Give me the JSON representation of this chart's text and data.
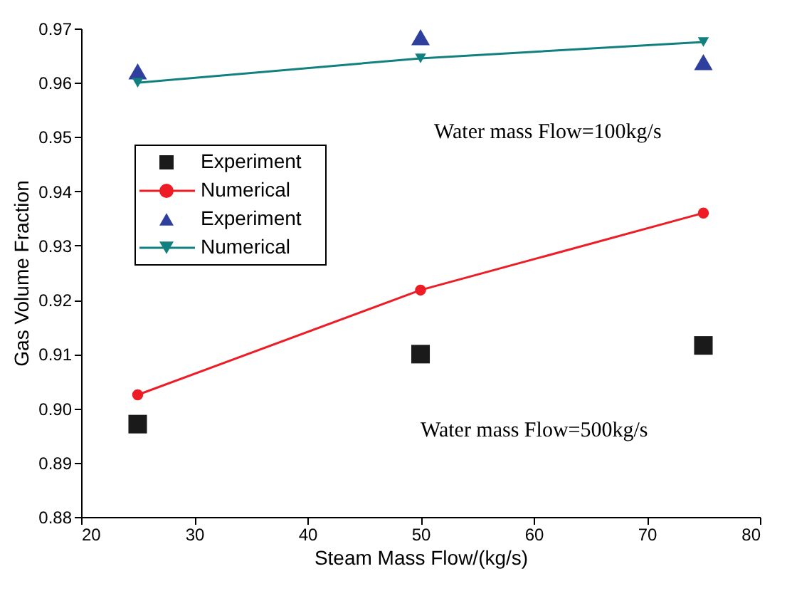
{
  "chart_data": {
    "type": "line",
    "xlabel": "Steam Mass Flow/(kg/s)",
    "ylabel": "Gas Volume Fraction",
    "x": [
      25,
      50,
      75
    ],
    "series": [
      {
        "name": "Experiment",
        "type": "scatter",
        "marker": "square",
        "color": "#1a1a1a",
        "values": [
          0.8971,
          0.91,
          0.9116
        ]
      },
      {
        "name": "Numerical",
        "marker": "circle",
        "color": "#ee1c25",
        "values": [
          0.9025,
          0.9218,
          0.936
        ]
      },
      {
        "name": "Experiment",
        "type": "scatter",
        "marker": "triangle",
        "color": "#2e3f9e",
        "values": [
          0.9621,
          0.9684,
          0.9638
        ]
      },
      {
        "name": "Numerical",
        "marker": "triangle-down",
        "color": "#138080",
        "values": [
          0.96,
          0.9645,
          0.9675
        ]
      }
    ],
    "xlim": [
      20,
      80
    ],
    "xticks": [
      20,
      30,
      40,
      50,
      60,
      70,
      80
    ],
    "ylim": [
      0.88,
      0.97
    ],
    "yticks": [
      0.88,
      0.89,
      {
        "value": 0.9,
        "label": "0.90"
      },
      0.91,
      0.92,
      0.93,
      0.94,
      0.95,
      0.96,
      0.97
    ],
    "annotations": [
      "Water mass Flow=100kg/s",
      "Water mass Flow=500kg/s"
    ],
    "legend": "left",
    "grid": false
  }
}
